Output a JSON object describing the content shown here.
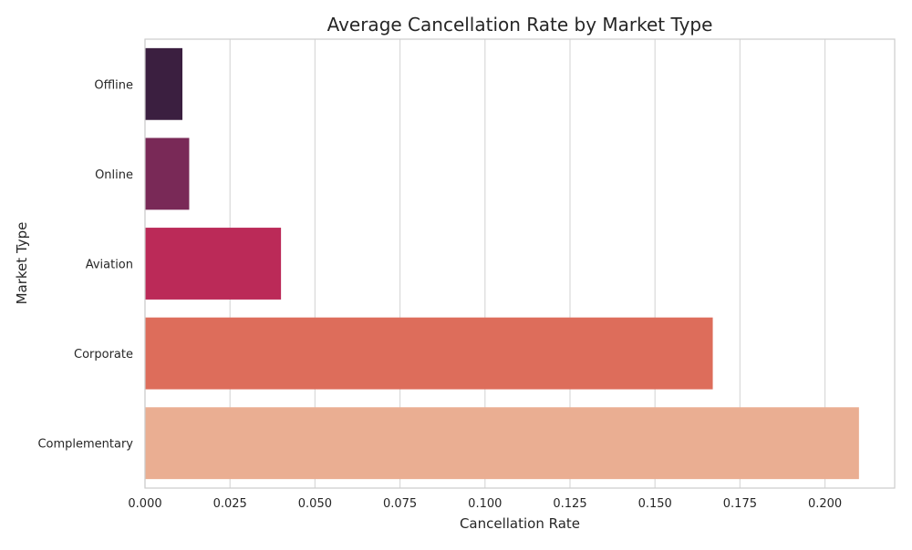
{
  "chart_data": {
    "type": "bar",
    "orientation": "horizontal",
    "title": "Average Cancellation Rate by Market Type",
    "xlabel": "Cancellation Rate",
    "ylabel": "Market Type",
    "categories": [
      "Offline",
      "Online",
      "Aviation",
      "Corporate",
      "Complementary"
    ],
    "values": [
      0.011,
      0.013,
      0.04,
      0.167,
      0.21
    ],
    "colors": [
      "#3b1f40",
      "#792957",
      "#bb2a58",
      "#dd6d5b",
      "#eaae92"
    ],
    "xlim": [
      0.0,
      0.2205
    ],
    "xticks": [
      0.0,
      0.025,
      0.05,
      0.075,
      0.1,
      0.125,
      0.15,
      0.175,
      0.2
    ],
    "xtick_labels": [
      "0.000",
      "0.025",
      "0.050",
      "0.075",
      "0.100",
      "0.125",
      "0.150",
      "0.175",
      "0.200"
    ],
    "grid": true,
    "grid_axis": "x",
    "grid_color": "#d9d9d9",
    "spine_color": "#cccccc",
    "background": "#ffffff"
  }
}
